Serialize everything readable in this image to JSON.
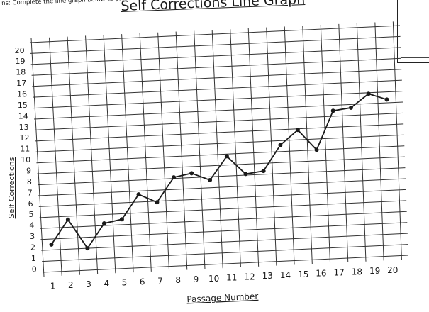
{
  "header": {
    "instructions": "ns: Complete the line graph below to progress monitor self corrections",
    "title": "Self Corrections Line Graph"
  },
  "chart_data": {
    "type": "line",
    "title": "Self Corrections Line Graph",
    "xlabel": "Passage Number",
    "ylabel": "Self Corrections",
    "x_ticks": [
      "1",
      "2",
      "3",
      "4",
      "5",
      "6",
      "7",
      "8",
      "9",
      "10",
      "11",
      "12",
      "13",
      "14",
      "15",
      "16",
      "17",
      "18",
      "19",
      "20"
    ],
    "y_ticks": [
      "0",
      "1",
      "2",
      "3",
      "4",
      "5",
      "6",
      "7",
      "8",
      "9",
      "10",
      "11",
      "12",
      "13",
      "14",
      "15",
      "16",
      "17",
      "18",
      "19",
      "20"
    ],
    "xlim": [
      1,
      20
    ],
    "ylim": [
      0,
      20
    ],
    "grid": true,
    "series": [
      {
        "x": [
          1,
          2,
          3,
          4,
          5,
          6,
          7,
          8,
          9,
          10,
          11,
          12,
          13,
          14,
          15,
          16,
          17,
          18,
          19,
          20
        ],
        "values": [
          2.2,
          4.4,
          1.7,
          3.9,
          4.2,
          6.4,
          5.6,
          7.8,
          8.1,
          7.4,
          9.5,
          7.8,
          8.0,
          10.3,
          11.6,
          9.7,
          13.2,
          13.4,
          14.6,
          14.0
        ]
      }
    ]
  },
  "colors": {
    "ink": "#1a1a1a",
    "grid": "#333333",
    "paper": "#ffffff"
  }
}
